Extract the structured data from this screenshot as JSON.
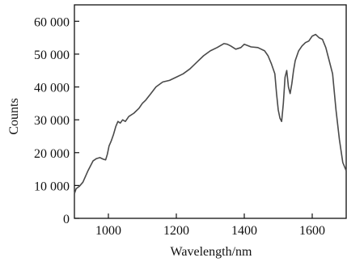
{
  "chart_data": {
    "type": "line",
    "title": "",
    "xlabel": "Wavelength/nm",
    "ylabel": "Counts",
    "xlim": [
      900,
      1700
    ],
    "ylim": [
      0,
      65000
    ],
    "x_ticks": [
      1000,
      1200,
      1400,
      1600
    ],
    "x_tick_labels": [
      "1000",
      "1200",
      "1400",
      "1600"
    ],
    "y_ticks": [
      0,
      10000,
      20000,
      30000,
      40000,
      50000,
      60000
    ],
    "y_tick_labels": [
      "0",
      "10 000",
      "20 000",
      "30 000",
      "40 000",
      "50 000",
      "60 000"
    ],
    "grid": false,
    "legend": "none",
    "line_color": "#4a4a4a",
    "series": [
      {
        "x": [
          900,
          905,
          915,
          925,
          940,
          955,
          965,
          975,
          985,
          992,
          997,
          1002,
          1008,
          1015,
          1022,
          1028,
          1035,
          1042,
          1050,
          1060,
          1075,
          1090,
          1100,
          1110,
          1125,
          1140,
          1160,
          1180,
          1200,
          1220,
          1240,
          1260,
          1280,
          1300,
          1320,
          1340,
          1350,
          1360,
          1375,
          1390,
          1400,
          1420,
          1440,
          1460,
          1470,
          1480,
          1490,
          1495,
          1500,
          1505,
          1510,
          1515,
          1520,
          1525,
          1530,
          1535,
          1540,
          1545,
          1550,
          1560,
          1570,
          1580,
          1590,
          1600,
          1610,
          1620,
          1630,
          1640,
          1650,
          1660,
          1670,
          1680,
          1690,
          1700
        ],
        "y": [
          7500,
          9000,
          9800,
          11000,
          14500,
          17500,
          18200,
          18500,
          18000,
          17800,
          19500,
          22000,
          23500,
          25500,
          28000,
          29500,
          29000,
          30000,
          29500,
          31000,
          32000,
          33500,
          35000,
          36000,
          38000,
          40000,
          41500,
          42000,
          43000,
          44000,
          45500,
          47500,
          49500,
          51000,
          52000,
          53200,
          53000,
          52500,
          51500,
          52000,
          53000,
          52200,
          52000,
          51000,
          49500,
          47000,
          44000,
          38000,
          33000,
          30500,
          29500,
          35000,
          43000,
          45000,
          40000,
          38000,
          41000,
          45000,
          48000,
          51000,
          52500,
          53500,
          54000,
          55500,
          56000,
          55000,
          54500,
          52000,
          48000,
          44000,
          33000,
          24000,
          17000,
          14500
        ]
      }
    ]
  }
}
